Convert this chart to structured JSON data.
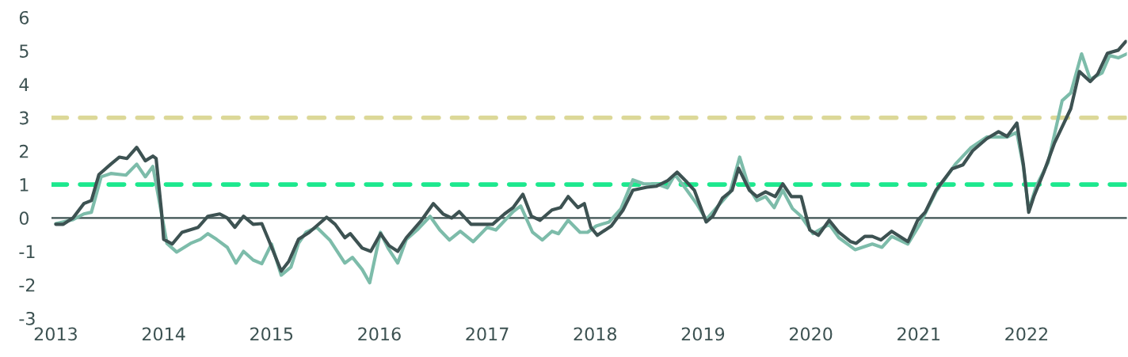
{
  "chart_data": {
    "type": "line",
    "xlim": [
      2012.96,
      2022.93
    ],
    "ylim": [
      -3,
      6
    ],
    "xticks": [
      2013,
      2014,
      2015,
      2016,
      2017,
      2018,
      2019,
      2020,
      2021,
      2022
    ],
    "yticks": [
      -3,
      -2,
      -1,
      0,
      1,
      2,
      3,
      4,
      5,
      6
    ],
    "grid": false,
    "legend": false,
    "line_style": "solid",
    "marker": "none",
    "ref_lines": [
      {
        "axis": "y",
        "value": 0,
        "color": "#3d5252",
        "line_style": "solid"
      },
      {
        "axis": "y",
        "value": 3,
        "color": "#dcd898",
        "line_style": "dashed"
      },
      {
        "axis": "y",
        "value": 1,
        "color": "#1de88e",
        "line_style": "dashed"
      }
    ],
    "series": [
      {
        "color": "#7dbcaa",
        "x": [
          2013.0,
          2013.16,
          2013.26,
          2013.33,
          2013.42,
          2013.51,
          2013.65,
          2013.75,
          2013.83,
          2013.9,
          2013.95,
          2014.03,
          2014.12,
          2014.25,
          2014.34,
          2014.41,
          2014.49,
          2014.59,
          2014.67,
          2014.74,
          2014.83,
          2014.91,
          2015.0,
          2015.09,
          2015.18,
          2015.25,
          2015.32,
          2015.42,
          2015.54,
          2015.68,
          2015.75,
          2015.84,
          2015.91,
          2016.01,
          2016.08,
          2016.17,
          2016.25,
          2016.35,
          2016.47,
          2016.56,
          2016.65,
          2016.75,
          2016.87,
          2017.0,
          2017.08,
          2017.24,
          2017.31,
          2017.42,
          2017.51,
          2017.6,
          2017.66,
          2017.75,
          2017.86,
          2017.93,
          2018.01,
          2018.13,
          2018.24,
          2018.35,
          2018.45,
          2018.57,
          2018.67,
          2018.74,
          2018.84,
          2018.94,
          2019.03,
          2019.16,
          2019.25,
          2019.34,
          2019.43,
          2019.5,
          2019.58,
          2019.66,
          2019.74,
          2019.83,
          2019.91,
          2020.02,
          2020.17,
          2020.26,
          2020.41,
          2020.57,
          2020.66,
          2020.75,
          2020.9,
          2021.01,
          2021.16,
          2021.34,
          2021.48,
          2021.63,
          2021.82,
          2021.91,
          2021.97,
          2022.02,
          2022.09,
          2022.2,
          2022.33,
          2022.41,
          2022.51,
          2022.59,
          2022.7,
          2022.77,
          2022.85,
          2022.93
        ],
        "values": [
          -0.17,
          -0.05,
          0.12,
          0.17,
          1.23,
          1.33,
          1.28,
          1.61,
          1.23,
          1.54,
          0.66,
          -0.76,
          -1.02,
          -0.76,
          -0.64,
          -0.47,
          -0.64,
          -0.88,
          -1.35,
          -1.0,
          -1.26,
          -1.37,
          -0.78,
          -1.71,
          -1.47,
          -0.76,
          -0.43,
          -0.28,
          -0.66,
          -1.35,
          -1.18,
          -1.54,
          -1.94,
          -0.43,
          -0.9,
          -1.35,
          -0.64,
          -0.36,
          0.05,
          -0.36,
          -0.66,
          -0.4,
          -0.71,
          -0.28,
          -0.36,
          0.19,
          0.36,
          -0.43,
          -0.66,
          -0.4,
          -0.47,
          -0.07,
          -0.43,
          -0.43,
          -0.24,
          -0.12,
          0.28,
          1.14,
          1.02,
          1.02,
          0.9,
          1.3,
          0.88,
          0.43,
          -0.05,
          0.43,
          0.76,
          1.82,
          0.88,
          0.52,
          0.64,
          0.31,
          0.83,
          0.28,
          0.05,
          -0.47,
          -0.19,
          -0.59,
          -0.95,
          -0.78,
          -0.88,
          -0.55,
          -0.78,
          -0.19,
          0.78,
          1.61,
          2.09,
          2.42,
          2.42,
          2.56,
          1.54,
          0.24,
          0.95,
          1.66,
          3.51,
          3.74,
          4.91,
          4.15,
          4.34,
          4.86,
          4.79,
          4.91
        ]
      },
      {
        "color": "#3d5252",
        "x": [
          2013.0,
          2013.07,
          2013.16,
          2013.26,
          2013.33,
          2013.4,
          2013.51,
          2013.59,
          2013.66,
          2013.75,
          2013.83,
          2013.9,
          2013.93,
          2013.98,
          2014.0,
          2014.08,
          2014.17,
          2014.32,
          2014.41,
          2014.52,
          2014.59,
          2014.66,
          2014.74,
          2014.83,
          2014.91,
          2014.98,
          2015.09,
          2015.16,
          2015.25,
          2015.35,
          2015.51,
          2015.59,
          2015.68,
          2015.73,
          2015.84,
          2015.92,
          2016.01,
          2016.09,
          2016.17,
          2016.25,
          2016.39,
          2016.5,
          2016.59,
          2016.67,
          2016.74,
          2016.85,
          2017.05,
          2017.16,
          2017.24,
          2017.33,
          2017.41,
          2017.49,
          2017.6,
          2017.68,
          2017.75,
          2017.84,
          2017.9,
          2017.96,
          2018.02,
          2018.15,
          2018.26,
          2018.35,
          2018.48,
          2018.57,
          2018.67,
          2018.76,
          2018.84,
          2018.92,
          2019.03,
          2019.09,
          2019.18,
          2019.27,
          2019.33,
          2019.43,
          2019.5,
          2019.58,
          2019.67,
          2019.74,
          2019.82,
          2019.91,
          2019.99,
          2020.07,
          2020.17,
          2020.26,
          2020.37,
          2020.42,
          2020.5,
          2020.57,
          2020.65,
          2020.75,
          2020.9,
          2020.99,
          2021.06,
          2021.16,
          2021.31,
          2021.41,
          2021.5,
          2021.63,
          2021.74,
          2021.82,
          2021.91,
          2021.97,
          2022.02,
          2022.07,
          2022.16,
          2022.26,
          2022.41,
          2022.49,
          2022.59,
          2022.66,
          2022.75,
          2022.85,
          2022.92
        ],
        "values": [
          -0.19,
          -0.19,
          0.0,
          0.43,
          0.52,
          1.3,
          1.61,
          1.82,
          1.78,
          2.11,
          1.71,
          1.85,
          1.78,
          0.19,
          -0.64,
          -0.78,
          -0.43,
          -0.28,
          0.05,
          0.12,
          0.0,
          -0.28,
          0.05,
          -0.19,
          -0.17,
          -0.71,
          -1.59,
          -1.3,
          -0.64,
          -0.43,
          0.02,
          -0.19,
          -0.59,
          -0.47,
          -0.9,
          -1.0,
          -0.47,
          -0.83,
          -1.0,
          -0.59,
          -0.07,
          0.43,
          0.12,
          0.0,
          0.19,
          -0.19,
          -0.19,
          0.12,
          0.31,
          0.71,
          0.05,
          -0.07,
          0.24,
          0.31,
          0.64,
          0.31,
          0.43,
          -0.28,
          -0.52,
          -0.24,
          0.24,
          0.83,
          0.92,
          0.95,
          1.11,
          1.37,
          1.11,
          0.83,
          -0.12,
          0.05,
          0.59,
          0.83,
          1.49,
          0.83,
          0.64,
          0.78,
          0.64,
          1.02,
          0.64,
          0.64,
          -0.36,
          -0.52,
          -0.07,
          -0.43,
          -0.71,
          -0.76,
          -0.55,
          -0.55,
          -0.66,
          -0.4,
          -0.71,
          -0.07,
          0.17,
          0.83,
          1.47,
          1.59,
          2.01,
          2.37,
          2.58,
          2.44,
          2.84,
          1.61,
          0.17,
          0.66,
          1.37,
          2.25,
          3.27,
          4.38,
          4.08,
          4.31,
          4.93,
          5.02,
          5.28
        ]
      }
    ]
  }
}
